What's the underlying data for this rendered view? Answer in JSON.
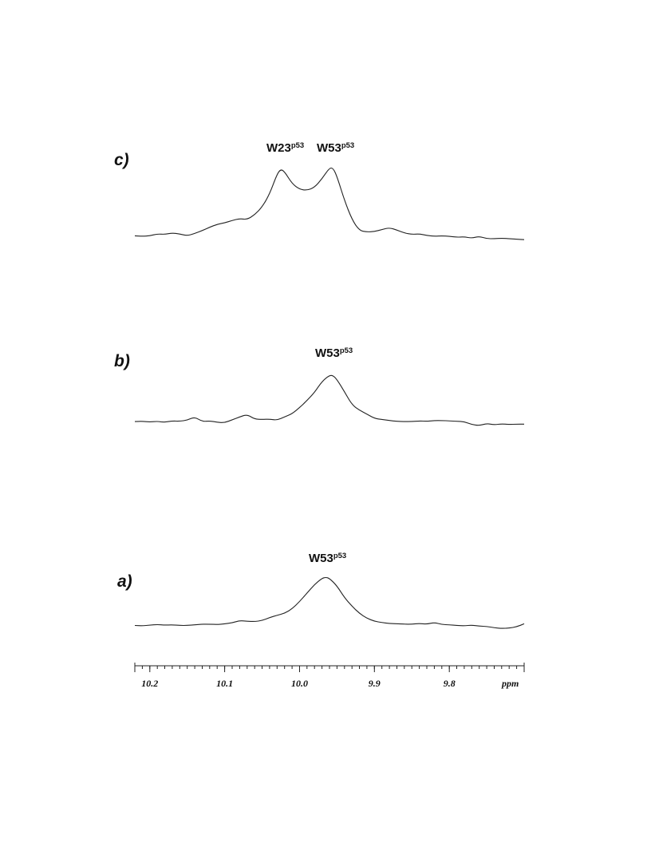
{
  "chart_data": {
    "type": "line",
    "x_axis": {
      "unit_label": "ppm",
      "range": [
        10.22,
        9.7
      ],
      "reversed": true,
      "major_ticks": [
        10.2,
        10.1,
        10.0,
        9.9,
        9.8
      ],
      "tick_labels": [
        "10.2",
        "10.1",
        "10.0",
        "9.9",
        "9.8"
      ],
      "minor_step": 0.01
    },
    "panels": [
      {
        "label": "c)",
        "peaks": [
          {
            "name": "W23",
            "superscript": "p53",
            "x": 10.025
          },
          {
            "name": "W53",
            "superscript": "p53",
            "x": 9.96
          }
        ],
        "series": [
          {
            "x": 10.22,
            "y": 0.11
          },
          {
            "x": 10.21,
            "y": 0.1
          },
          {
            "x": 10.2,
            "y": 0.11
          },
          {
            "x": 10.19,
            "y": 0.15
          },
          {
            "x": 10.18,
            "y": 0.14
          },
          {
            "x": 10.17,
            "y": 0.17
          },
          {
            "x": 10.16,
            "y": 0.15
          },
          {
            "x": 10.15,
            "y": 0.11
          },
          {
            "x": 10.14,
            "y": 0.16
          },
          {
            "x": 10.13,
            "y": 0.22
          },
          {
            "x": 10.12,
            "y": 0.29
          },
          {
            "x": 10.11,
            "y": 0.35
          },
          {
            "x": 10.1,
            "y": 0.38
          },
          {
            "x": 10.09,
            "y": 0.43
          },
          {
            "x": 10.08,
            "y": 0.47
          },
          {
            "x": 10.07,
            "y": 0.45
          },
          {
            "x": 10.06,
            "y": 0.55
          },
          {
            "x": 10.05,
            "y": 0.71
          },
          {
            "x": 10.04,
            "y": 0.98
          },
          {
            "x": 10.03,
            "y": 1.4
          },
          {
            "x": 10.025,
            "y": 1.5
          },
          {
            "x": 10.02,
            "y": 1.45
          },
          {
            "x": 10.01,
            "y": 1.2
          },
          {
            "x": 10.0,
            "y": 1.08
          },
          {
            "x": 9.99,
            "y": 1.06
          },
          {
            "x": 9.98,
            "y": 1.12
          },
          {
            "x": 9.97,
            "y": 1.3
          },
          {
            "x": 9.96,
            "y": 1.53
          },
          {
            "x": 9.955,
            "y": 1.52
          },
          {
            "x": 9.95,
            "y": 1.35
          },
          {
            "x": 9.94,
            "y": 0.85
          },
          {
            "x": 9.93,
            "y": 0.45
          },
          {
            "x": 9.92,
            "y": 0.22
          },
          {
            "x": 9.91,
            "y": 0.19
          },
          {
            "x": 9.9,
            "y": 0.2
          },
          {
            "x": 9.89,
            "y": 0.24
          },
          {
            "x": 9.88,
            "y": 0.28
          },
          {
            "x": 9.87,
            "y": 0.23
          },
          {
            "x": 9.86,
            "y": 0.17
          },
          {
            "x": 9.85,
            "y": 0.14
          },
          {
            "x": 9.84,
            "y": 0.15
          },
          {
            "x": 9.83,
            "y": 0.12
          },
          {
            "x": 9.82,
            "y": 0.1
          },
          {
            "x": 9.81,
            "y": 0.11
          },
          {
            "x": 9.8,
            "y": 0.1
          },
          {
            "x": 9.79,
            "y": 0.08
          },
          {
            "x": 9.78,
            "y": 0.09
          },
          {
            "x": 9.77,
            "y": 0.06
          },
          {
            "x": 9.76,
            "y": 0.1
          },
          {
            "x": 9.75,
            "y": 0.05
          },
          {
            "x": 9.74,
            "y": 0.05
          },
          {
            "x": 9.73,
            "y": 0.06
          },
          {
            "x": 9.72,
            "y": 0.05
          },
          {
            "x": 9.71,
            "y": 0.04
          },
          {
            "x": 9.7,
            "y": 0.03
          }
        ]
      },
      {
        "label": "b)",
        "peaks": [
          {
            "name": "W53",
            "superscript": "p53",
            "x": 9.96
          }
        ],
        "series": [
          {
            "x": 10.22,
            "y": 0.13
          },
          {
            "x": 10.21,
            "y": 0.14
          },
          {
            "x": 10.2,
            "y": 0.12
          },
          {
            "x": 10.19,
            "y": 0.14
          },
          {
            "x": 10.18,
            "y": 0.11
          },
          {
            "x": 10.17,
            "y": 0.15
          },
          {
            "x": 10.16,
            "y": 0.14
          },
          {
            "x": 10.15,
            "y": 0.17
          },
          {
            "x": 10.14,
            "y": 0.26
          },
          {
            "x": 10.13,
            "y": 0.13
          },
          {
            "x": 10.12,
            "y": 0.15
          },
          {
            "x": 10.11,
            "y": 0.11
          },
          {
            "x": 10.1,
            "y": 0.1
          },
          {
            "x": 10.09,
            "y": 0.18
          },
          {
            "x": 10.08,
            "y": 0.26
          },
          {
            "x": 10.07,
            "y": 0.33
          },
          {
            "x": 10.06,
            "y": 0.2
          },
          {
            "x": 10.05,
            "y": 0.19
          },
          {
            "x": 10.04,
            "y": 0.2
          },
          {
            "x": 10.03,
            "y": 0.17
          },
          {
            "x": 10.02,
            "y": 0.26
          },
          {
            "x": 10.01,
            "y": 0.35
          },
          {
            "x": 10.0,
            "y": 0.52
          },
          {
            "x": 9.99,
            "y": 0.72
          },
          {
            "x": 9.98,
            "y": 0.94
          },
          {
            "x": 9.97,
            "y": 1.25
          },
          {
            "x": 9.96,
            "y": 1.42
          },
          {
            "x": 9.955,
            "y": 1.41
          },
          {
            "x": 9.95,
            "y": 1.3
          },
          {
            "x": 9.94,
            "y": 0.96
          },
          {
            "x": 9.93,
            "y": 0.6
          },
          {
            "x": 9.92,
            "y": 0.45
          },
          {
            "x": 9.91,
            "y": 0.34
          },
          {
            "x": 9.9,
            "y": 0.22
          },
          {
            "x": 9.89,
            "y": 0.19
          },
          {
            "x": 9.88,
            "y": 0.16
          },
          {
            "x": 9.87,
            "y": 0.14
          },
          {
            "x": 9.86,
            "y": 0.13
          },
          {
            "x": 9.85,
            "y": 0.13
          },
          {
            "x": 9.84,
            "y": 0.15
          },
          {
            "x": 9.83,
            "y": 0.14
          },
          {
            "x": 9.82,
            "y": 0.16
          },
          {
            "x": 9.81,
            "y": 0.16
          },
          {
            "x": 9.8,
            "y": 0.15
          },
          {
            "x": 9.79,
            "y": 0.14
          },
          {
            "x": 9.78,
            "y": 0.13
          },
          {
            "x": 9.77,
            "y": 0.05
          },
          {
            "x": 9.76,
            "y": 0.02
          },
          {
            "x": 9.75,
            "y": 0.08
          },
          {
            "x": 9.74,
            "y": 0.04
          },
          {
            "x": 9.73,
            "y": 0.07
          },
          {
            "x": 9.72,
            "y": 0.05
          },
          {
            "x": 9.71,
            "y": 0.06
          },
          {
            "x": 9.7,
            "y": 0.06
          }
        ]
      },
      {
        "label": "a)",
        "peaks": [
          {
            "name": "W53",
            "superscript": "p53",
            "x": 9.965
          }
        ],
        "series": [
          {
            "x": 10.22,
            "y": 0.11
          },
          {
            "x": 10.21,
            "y": 0.1
          },
          {
            "x": 10.2,
            "y": 0.12
          },
          {
            "x": 10.19,
            "y": 0.14
          },
          {
            "x": 10.18,
            "y": 0.12
          },
          {
            "x": 10.17,
            "y": 0.13
          },
          {
            "x": 10.16,
            "y": 0.11
          },
          {
            "x": 10.15,
            "y": 0.11
          },
          {
            "x": 10.14,
            "y": 0.13
          },
          {
            "x": 10.13,
            "y": 0.15
          },
          {
            "x": 10.12,
            "y": 0.15
          },
          {
            "x": 10.11,
            "y": 0.14
          },
          {
            "x": 10.1,
            "y": 0.16
          },
          {
            "x": 10.09,
            "y": 0.19
          },
          {
            "x": 10.08,
            "y": 0.26
          },
          {
            "x": 10.07,
            "y": 0.24
          },
          {
            "x": 10.06,
            "y": 0.23
          },
          {
            "x": 10.05,
            "y": 0.26
          },
          {
            "x": 10.04,
            "y": 0.35
          },
          {
            "x": 10.03,
            "y": 0.42
          },
          {
            "x": 10.02,
            "y": 0.48
          },
          {
            "x": 10.01,
            "y": 0.62
          },
          {
            "x": 10.0,
            "y": 0.84
          },
          {
            "x": 9.99,
            "y": 1.1
          },
          {
            "x": 9.98,
            "y": 1.36
          },
          {
            "x": 9.97,
            "y": 1.55
          },
          {
            "x": 9.965,
            "y": 1.58
          },
          {
            "x": 9.96,
            "y": 1.55
          },
          {
            "x": 9.95,
            "y": 1.32
          },
          {
            "x": 9.94,
            "y": 0.96
          },
          {
            "x": 9.93,
            "y": 0.7
          },
          {
            "x": 9.92,
            "y": 0.48
          },
          {
            "x": 9.91,
            "y": 0.33
          },
          {
            "x": 9.9,
            "y": 0.24
          },
          {
            "x": 9.89,
            "y": 0.2
          },
          {
            "x": 9.88,
            "y": 0.17
          },
          {
            "x": 9.87,
            "y": 0.16
          },
          {
            "x": 9.86,
            "y": 0.15
          },
          {
            "x": 9.85,
            "y": 0.15
          },
          {
            "x": 9.84,
            "y": 0.17
          },
          {
            "x": 9.83,
            "y": 0.15
          },
          {
            "x": 9.82,
            "y": 0.2
          },
          {
            "x": 9.81,
            "y": 0.14
          },
          {
            "x": 9.8,
            "y": 0.13
          },
          {
            "x": 9.79,
            "y": 0.11
          },
          {
            "x": 9.78,
            "y": 0.1
          },
          {
            "x": 9.77,
            "y": 0.12
          },
          {
            "x": 9.76,
            "y": 0.09
          },
          {
            "x": 9.75,
            "y": 0.08
          },
          {
            "x": 9.74,
            "y": 0.04
          },
          {
            "x": 9.73,
            "y": 0.02
          },
          {
            "x": 9.72,
            "y": 0.03
          },
          {
            "x": 9.71,
            "y": 0.07
          },
          {
            "x": 9.7,
            "y": 0.16
          }
        ]
      }
    ]
  }
}
